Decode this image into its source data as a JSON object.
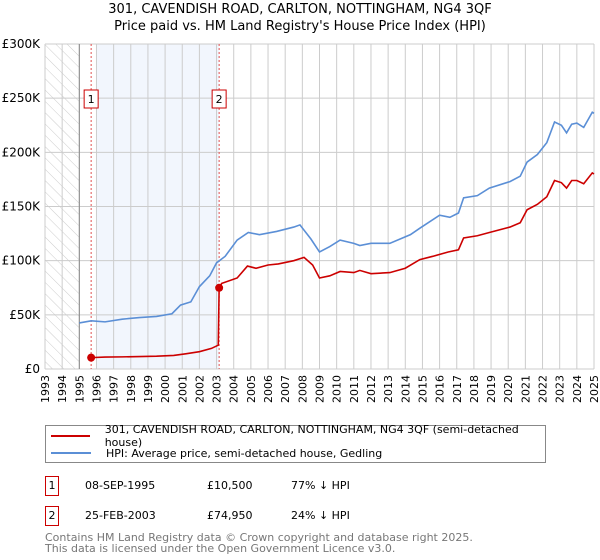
{
  "chart_data": {
    "type": "line",
    "title": "301, CAVENDISH ROAD, CARLTON, NOTTINGHAM, NG4 3QF",
    "subtitle": "Price paid vs. HM Land Registry's House Price Index (HPI)",
    "xlim": [
      1993,
      2025
    ],
    "ylim": [
      0,
      300000
    ],
    "x_ticks": [
      "1993",
      "1994",
      "1995",
      "1996",
      "1997",
      "1998",
      "1999",
      "2000",
      "2001",
      "2002",
      "2003",
      "2004",
      "2005",
      "2006",
      "2007",
      "2008",
      "2009",
      "2010",
      "2011",
      "2012",
      "2013",
      "2014",
      "2015",
      "2016",
      "2017",
      "2018",
      "2019",
      "2020",
      "2021",
      "2022",
      "2023",
      "2024",
      "2025"
    ],
    "y_ticks": [
      {
        "v": 0,
        "label": "£0"
      },
      {
        "v": 50000,
        "label": "£50K"
      },
      {
        "v": 100000,
        "label": "£100K"
      },
      {
        "v": 150000,
        "label": "£150K"
      },
      {
        "v": 200000,
        "label": "£200K"
      },
      {
        "v": 250000,
        "label": "£250K"
      },
      {
        "v": 300000,
        "label": "£300K"
      }
    ],
    "grid": true,
    "series": [
      {
        "name": "301, CAVENDISH ROAD, CARLTON, NOTTINGHAM, NG4 3QF (semi-detached house)",
        "color": "#cc0000",
        "x": [
          1995.69,
          1996.5,
          1997.5,
          1998.5,
          1999.5,
          2000.5,
          2001.2,
          2002,
          2002.7,
          2003.1,
          2003.15,
          2003.3,
          2004.2,
          2004.8,
          2005.3,
          2006,
          2006.6,
          2007.5,
          2008.1,
          2008.6,
          2009,
          2009.6,
          2010.2,
          2011,
          2011.35,
          2012,
          2013.1,
          2014,
          2014.85,
          2015.6,
          2016.5,
          2017.1,
          2017.4,
          2018.2,
          2018.9,
          2020.1,
          2020.7,
          2021.1,
          2021.7,
          2022.25,
          2022.7,
          2023.1,
          2023.4,
          2023.7,
          2024,
          2024.4,
          2024.9,
          2025
        ],
        "y": [
          10500,
          11000,
          11200,
          11500,
          11800,
          12500,
          14000,
          16000,
          19000,
          22000,
          74950,
          79000,
          84000,
          95000,
          93000,
          96000,
          97000,
          100000,
          103000,
          96000,
          84000,
          86000,
          90000,
          89000,
          91000,
          88000,
          89000,
          93000,
          101000,
          104000,
          108000,
          110000,
          121000,
          123000,
          126000,
          131000,
          135000,
          147000,
          152000,
          159000,
          174000,
          172000,
          167000,
          174000,
          174000,
          171000,
          181000,
          180000
        ]
      },
      {
        "name": "HPI: Average price, semi-detached house, Gedling",
        "color": "#5b8fd6",
        "x": [
          1995,
          1995.7,
          1996.5,
          1997.5,
          1998.5,
          1999.5,
          2000.4,
          2000.9,
          2001.5,
          2002,
          2002.6,
          2003,
          2003.5,
          2004.2,
          2004.85,
          2005.5,
          2006.5,
          2007.5,
          2007.86,
          2008.5,
          2009,
          2009.6,
          2010.2,
          2011,
          2011.35,
          2012,
          2013.1,
          2014.3,
          2014.85,
          2016,
          2016.6,
          2017.1,
          2017.4,
          2018.2,
          2018.9,
          2020.1,
          2020.7,
          2021.1,
          2021.7,
          2022.25,
          2022.7,
          2023.1,
          2023.4,
          2023.7,
          2024,
          2024.4,
          2024.9,
          2025
        ],
        "y": [
          42500,
          44500,
          43500,
          46000,
          47500,
          48500,
          51000,
          59000,
          62000,
          76000,
          86000,
          98000,
          104000,
          119000,
          126000,
          124000,
          127000,
          131000,
          133000,
          120000,
          108000,
          113000,
          119000,
          116000,
          114000,
          116000,
          116000,
          124000,
          130000,
          142000,
          140000,
          144000,
          158000,
          160000,
          167000,
          173000,
          178000,
          191000,
          198000,
          209000,
          228000,
          225000,
          218000,
          226000,
          227000,
          223000,
          237000,
          236000
        ]
      }
    ],
    "annotations": [
      {
        "label": "1",
        "x": 1995.69,
        "y": 10500
      },
      {
        "label": "2",
        "x": 2003.15,
        "y": 74950
      }
    ],
    "legend_position": "bottom"
  },
  "legend": [
    {
      "label": "301, CAVENDISH ROAD, CARLTON, NOTTINGHAM, NG4 3QF (semi-detached house)",
      "color": "#cc0000"
    },
    {
      "label": "HPI: Average price, semi-detached house, Gedling",
      "color": "#5b8fd6"
    }
  ],
  "transactions": [
    {
      "num": "1",
      "date": "08-SEP-1995",
      "price": "£10,500",
      "hpi": "77% ↓ HPI"
    },
    {
      "num": "2",
      "date": "25-FEB-2003",
      "price": "£74,950",
      "hpi": "24% ↓ HPI"
    }
  ],
  "footer": [
    "Contains HM Land Registry data © Crown copyright and database right 2025.",
    "This data is licensed under the Open Government Licence v3.0."
  ]
}
